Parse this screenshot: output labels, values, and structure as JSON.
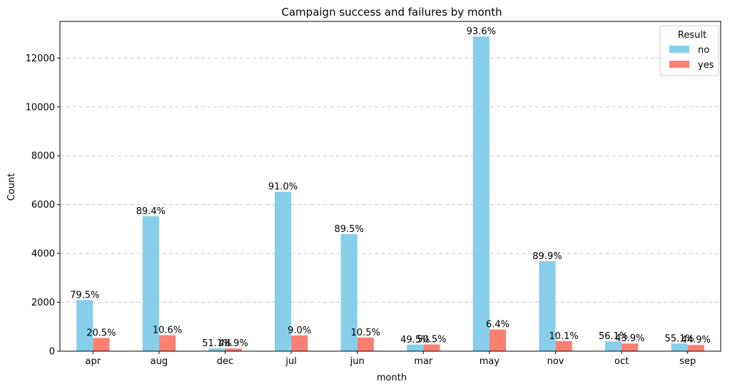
{
  "chart_data": {
    "type": "bar",
    "title": "Campaign success and failures by month",
    "xlabel": "month",
    "ylabel": "Count",
    "ylim": [
      0,
      13500
    ],
    "yticks": [
      0,
      2000,
      4000,
      6000,
      8000,
      10000,
      12000
    ],
    "grid": "horizontal dashed",
    "legend": {
      "title": "Result",
      "placement": "top-right"
    },
    "categories": [
      "apr",
      "aug",
      "dec",
      "jul",
      "jun",
      "mar",
      "may",
      "nov",
      "oct",
      "sep"
    ],
    "series": [
      {
        "name": "no",
        "color": "#87ceeb",
        "values": [
          2093,
          5523,
          114,
          6525,
          4795,
          270,
          12883,
          3685,
          403,
          314
        ],
        "labels": [
          "79.5%",
          "89.4%",
          "51.1%",
          "91.0%",
          "89.5%",
          "49.5%",
          "93.6%",
          "89.9%",
          "56.1%",
          "55.1%"
        ]
      },
      {
        "name": "yes",
        "color": "#fa8072",
        "values": [
          539,
          655,
          110,
          646,
          560,
          275,
          886,
          416,
          315,
          256
        ],
        "labels": [
          "20.5%",
          "10.6%",
          "48.9%",
          "9.0%",
          "10.5%",
          "50.5%",
          "6.4%",
          "10.1%",
          "43.9%",
          "44.9%"
        ]
      }
    ]
  }
}
